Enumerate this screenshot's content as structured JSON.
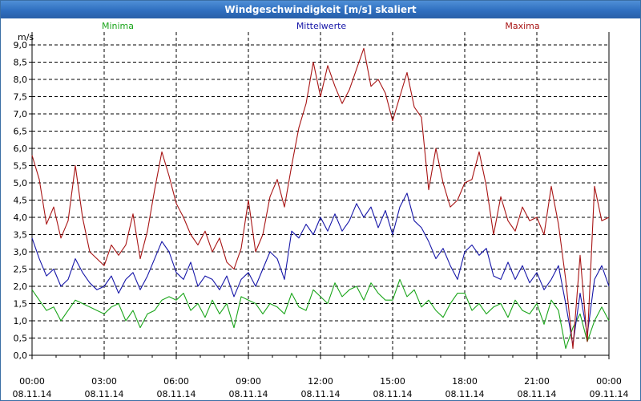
{
  "window": {
    "title": "Windgeschwindigkeit [m/s] skaliert"
  },
  "chart_data": {
    "type": "line",
    "title": "Windgeschwindigkeit [m/s] skaliert",
    "ylabel": "m/s",
    "ylim": [
      0,
      9.0
    ],
    "yticks": [
      "0,0",
      "0,5",
      "1,0",
      "1,5",
      "2,0",
      "2,5",
      "3,0",
      "3,5",
      "4,0",
      "4,5",
      "5,0",
      "5,5",
      "6,0",
      "6,5",
      "7,0",
      "7,5",
      "8,0",
      "8,5",
      "9,0"
    ],
    "x_range_hours": [
      0,
      24
    ],
    "xticks": [
      {
        "time": "00:00",
        "date": "08.11.14"
      },
      {
        "time": "03:00",
        "date": "08.11.14"
      },
      {
        "time": "06:00",
        "date": "08.11.14"
      },
      {
        "time": "09:00",
        "date": "08.11.14"
      },
      {
        "time": "12:00",
        "date": "08.11.14"
      },
      {
        "time": "15:00",
        "date": "08.11.14"
      },
      {
        "time": "18:00",
        "date": "08.11.14"
      },
      {
        "time": "21:00",
        "date": "08.11.14"
      },
      {
        "time": "00:00",
        "date": "09.11.14"
      }
    ],
    "grid": true,
    "series": [
      {
        "name": "Minima",
        "color": "#1aa51a",
        "x": [
          0,
          0.3,
          0.6,
          0.9,
          1.2,
          1.5,
          1.8,
          2.1,
          2.4,
          2.7,
          3.0,
          3.3,
          3.6,
          3.9,
          4.2,
          4.5,
          4.8,
          5.1,
          5.4,
          5.7,
          6.0,
          6.3,
          6.6,
          6.9,
          7.2,
          7.5,
          7.8,
          8.1,
          8.4,
          8.7,
          9.0,
          9.3,
          9.6,
          9.9,
          10.2,
          10.5,
          10.8,
          11.1,
          11.4,
          11.7,
          12.0,
          12.3,
          12.6,
          12.9,
          13.2,
          13.5,
          13.8,
          14.1,
          14.4,
          14.7,
          15.0,
          15.3,
          15.6,
          15.9,
          16.2,
          16.5,
          16.8,
          17.1,
          17.4,
          17.7,
          18.0,
          18.3,
          18.6,
          18.9,
          19.2,
          19.5,
          19.8,
          20.1,
          20.4,
          20.7,
          21.0,
          21.3,
          21.6,
          21.9,
          22.2,
          22.5,
          22.8,
          23.1,
          23.4,
          23.7,
          24.0
        ],
        "values": [
          1.9,
          1.6,
          1.3,
          1.4,
          1.0,
          1.3,
          1.6,
          1.5,
          1.4,
          1.3,
          1.2,
          1.4,
          1.5,
          1.0,
          1.3,
          0.8,
          1.2,
          1.3,
          1.6,
          1.7,
          1.6,
          1.8,
          1.3,
          1.5,
          1.1,
          1.6,
          1.2,
          1.5,
          0.8,
          1.7,
          1.6,
          1.5,
          1.2,
          1.5,
          1.4,
          1.2,
          1.8,
          1.4,
          1.3,
          1.9,
          1.7,
          1.5,
          2.1,
          1.7,
          1.9,
          2.0,
          1.6,
          2.1,
          1.8,
          1.6,
          1.6,
          2.2,
          1.7,
          1.9,
          1.4,
          1.6,
          1.3,
          1.1,
          1.5,
          1.8,
          1.8,
          1.3,
          1.5,
          1.2,
          1.4,
          1.5,
          1.1,
          1.6,
          1.3,
          1.2,
          1.5,
          0.9,
          1.6,
          1.3,
          0.2,
          0.8,
          1.2,
          0.4,
          1.0,
          1.4,
          1.0
        ]
      },
      {
        "name": "Mittelwerte",
        "color": "#1616a8",
        "x": [
          0,
          0.3,
          0.6,
          0.9,
          1.2,
          1.5,
          1.8,
          2.1,
          2.4,
          2.7,
          3.0,
          3.3,
          3.6,
          3.9,
          4.2,
          4.5,
          4.8,
          5.1,
          5.4,
          5.7,
          6.0,
          6.3,
          6.6,
          6.9,
          7.2,
          7.5,
          7.8,
          8.1,
          8.4,
          8.7,
          9.0,
          9.3,
          9.6,
          9.9,
          10.2,
          10.5,
          10.8,
          11.1,
          11.4,
          11.7,
          12.0,
          12.3,
          12.6,
          12.9,
          13.2,
          13.5,
          13.8,
          14.1,
          14.4,
          14.7,
          15.0,
          15.3,
          15.6,
          15.9,
          16.2,
          16.5,
          16.8,
          17.1,
          17.4,
          17.7,
          18.0,
          18.3,
          18.6,
          18.9,
          19.2,
          19.5,
          19.8,
          20.1,
          20.4,
          20.7,
          21.0,
          21.3,
          21.6,
          21.9,
          22.2,
          22.5,
          22.8,
          23.1,
          23.4,
          23.7,
          24.0
        ],
        "values": [
          3.4,
          2.8,
          2.3,
          2.5,
          2.0,
          2.2,
          2.8,
          2.4,
          2.1,
          1.9,
          2.0,
          2.3,
          1.8,
          2.2,
          2.4,
          1.9,
          2.3,
          2.8,
          3.3,
          3.0,
          2.4,
          2.2,
          2.7,
          2.0,
          2.3,
          2.2,
          1.9,
          2.3,
          1.7,
          2.2,
          2.4,
          2.0,
          2.5,
          3.0,
          2.8,
          2.2,
          3.6,
          3.4,
          3.8,
          3.5,
          4.0,
          3.6,
          4.1,
          3.6,
          3.9,
          4.4,
          4.0,
          4.3,
          3.7,
          4.2,
          3.5,
          4.3,
          4.7,
          3.9,
          3.7,
          3.3,
          2.8,
          3.1,
          2.6,
          2.2,
          3.0,
          3.2,
          2.9,
          3.1,
          2.3,
          2.2,
          2.7,
          2.2,
          2.6,
          2.1,
          2.4,
          1.9,
          2.2,
          2.6,
          1.5,
          0.3,
          1.8,
          0.6,
          2.2,
          2.6,
          2.0
        ]
      },
      {
        "name": "Maxima",
        "color": "#a81414",
        "x": [
          0,
          0.3,
          0.6,
          0.9,
          1.2,
          1.5,
          1.8,
          2.1,
          2.4,
          2.7,
          3.0,
          3.3,
          3.6,
          3.9,
          4.2,
          4.5,
          4.8,
          5.1,
          5.4,
          5.7,
          6.0,
          6.3,
          6.6,
          6.9,
          7.2,
          7.5,
          7.8,
          8.1,
          8.4,
          8.7,
          9.0,
          9.3,
          9.6,
          9.9,
          10.2,
          10.5,
          10.8,
          11.1,
          11.4,
          11.7,
          12.0,
          12.3,
          12.6,
          12.9,
          13.2,
          13.5,
          13.8,
          14.1,
          14.4,
          14.7,
          15.0,
          15.3,
          15.6,
          15.9,
          16.2,
          16.5,
          16.8,
          17.1,
          17.4,
          17.7,
          18.0,
          18.3,
          18.6,
          18.9,
          19.2,
          19.5,
          19.8,
          20.1,
          20.4,
          20.7,
          21.0,
          21.3,
          21.6,
          21.9,
          22.2,
          22.5,
          22.8,
          23.1,
          23.4,
          23.7,
          24.0
        ],
        "values": [
          5.8,
          5.1,
          3.8,
          4.3,
          3.4,
          3.9,
          5.5,
          4.0,
          3.0,
          2.8,
          2.6,
          3.2,
          2.9,
          3.2,
          4.1,
          2.8,
          3.6,
          4.8,
          5.9,
          5.2,
          4.4,
          4.0,
          3.5,
          3.2,
          3.6,
          3.0,
          3.4,
          2.7,
          2.5,
          3.1,
          4.5,
          3.0,
          3.5,
          4.6,
          5.1,
          4.3,
          5.5,
          6.6,
          7.3,
          8.5,
          7.5,
          8.4,
          7.8,
          7.3,
          7.7,
          8.3,
          8.9,
          7.8,
          8.0,
          7.6,
          6.8,
          7.5,
          8.2,
          7.2,
          6.9,
          4.8,
          6.0,
          5.0,
          4.3,
          4.5,
          5.0,
          5.1,
          5.9,
          4.9,
          3.5,
          4.6,
          3.9,
          3.6,
          4.3,
          3.9,
          4.0,
          3.5,
          4.9,
          3.8,
          2.2,
          0.2,
          2.9,
          0.4,
          4.9,
          3.9,
          4.0
        ]
      }
    ]
  }
}
